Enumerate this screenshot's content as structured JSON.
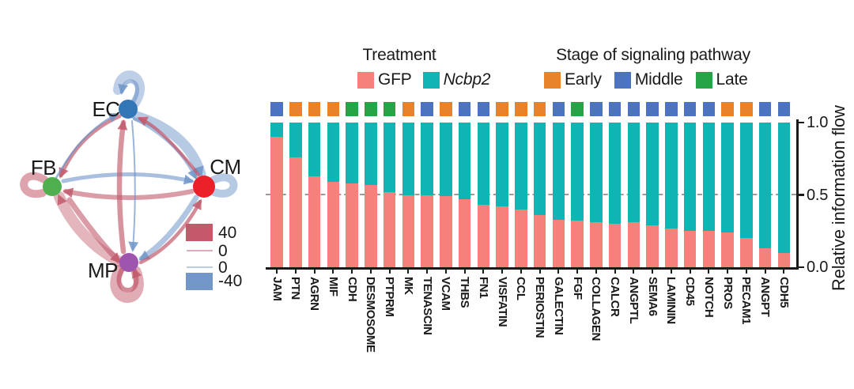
{
  "network": {
    "nodes": [
      {
        "id": "EC",
        "color": "#3276B6"
      },
      {
        "id": "CM",
        "color": "#EB2028"
      },
      {
        "id": "FB",
        "color": "#4FAE4E"
      },
      {
        "id": "MP",
        "color": "#9D55AE"
      }
    ],
    "edge_colors": {
      "increased": "#C25A6C",
      "decreased": "#7095C9"
    },
    "legend": {
      "max_label": "40",
      "zero_label_1": "0",
      "zero_label_2": "0",
      "min_label": "-40",
      "positive_color": "#C4596B",
      "negative_color": "#7396C9"
    }
  },
  "chart": {
    "legend_treatment": {
      "title": "Treatment",
      "items": [
        {
          "label": "GFP",
          "color": "#F5817A"
        },
        {
          "label": "Ncbp2",
          "color": "#0FB5B2"
        }
      ]
    },
    "legend_stage": {
      "title": "Stage of signaling pathway",
      "items": [
        {
          "label": "Early",
          "color": "#E8822B"
        },
        {
          "label": "Middle",
          "color": "#4C73C0"
        },
        {
          "label": "Late",
          "color": "#27A448"
        }
      ]
    },
    "y_axis": {
      "title": "Relative information flow",
      "ticks": [
        {
          "label": "1.0",
          "value": 1.0
        },
        {
          "label": "0.5",
          "value": 0.5
        },
        {
          "label": "0.0",
          "value": 0.0
        }
      ]
    }
  },
  "chart_data": {
    "type": "bar",
    "stacked": true,
    "title": "",
    "xlabel": "",
    "ylabel": "Relative information flow",
    "ylim": [
      0,
      1
    ],
    "gridline_y": 0.5,
    "categories": [
      "JAM",
      "PTN",
      "AGRN",
      "MIF",
      "CDH",
      "DESMOSOME",
      "PTPRM",
      "MK",
      "TENASCIN",
      "VCAM",
      "THBS",
      "FN1",
      "VISFATIN",
      "CCL",
      "PERIOSTIN",
      "GALECTIN",
      "FGF",
      "COLLAGEN",
      "CALCR",
      "ANGPTL",
      "SEMA6",
      "LAMININ",
      "CD45",
      "NOTCH",
      "PROS",
      "PECAM1",
      "ANGPT",
      "CDH5"
    ],
    "stage": [
      "Middle",
      "Early",
      "Early",
      "Early",
      "Late",
      "Late",
      "Late",
      "Early",
      "Middle",
      "Early",
      "Middle",
      "Middle",
      "Early",
      "Early",
      "Early",
      "Middle",
      "Late",
      "Middle",
      "Middle",
      "Middle",
      "Middle",
      "Middle",
      "Middle",
      "Middle",
      "Early",
      "Early",
      "Middle",
      "Middle"
    ],
    "series": [
      {
        "name": "GFP",
        "values": [
          0.9,
          0.76,
          0.63,
          0.59,
          0.58,
          0.57,
          0.52,
          0.5,
          0.5,
          0.49,
          0.47,
          0.43,
          0.42,
          0.4,
          0.36,
          0.33,
          0.32,
          0.31,
          0.3,
          0.31,
          0.29,
          0.27,
          0.25,
          0.25,
          0.24,
          0.2,
          0.13,
          0.1
        ]
      },
      {
        "name": "Ncbp2",
        "values": [
          0.1,
          0.24,
          0.37,
          0.41,
          0.42,
          0.43,
          0.48,
          0.5,
          0.5,
          0.51,
          0.53,
          0.57,
          0.58,
          0.6,
          0.64,
          0.67,
          0.68,
          0.69,
          0.7,
          0.69,
          0.71,
          0.73,
          0.75,
          0.75,
          0.76,
          0.8,
          0.87,
          0.9
        ]
      }
    ]
  }
}
